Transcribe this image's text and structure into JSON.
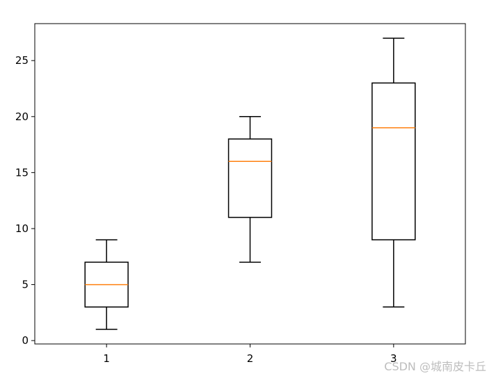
{
  "chart_data": {
    "type": "box",
    "title": "",
    "xlabel": "",
    "ylabel": "",
    "categories": [
      "1",
      "2",
      "3"
    ],
    "boxes": [
      {
        "label": "1",
        "whisker_low": 1,
        "q1": 3,
        "median": 5,
        "q3": 7,
        "whisker_high": 9
      },
      {
        "label": "2",
        "whisker_low": 7,
        "q1": 11,
        "median": 16,
        "q3": 18,
        "whisker_high": 20
      },
      {
        "label": "3",
        "whisker_low": 3,
        "q1": 9,
        "median": 19,
        "q3": 23,
        "whisker_high": 27
      }
    ],
    "ylim": [
      -0.3,
      28.3
    ],
    "yticks": [
      0,
      5,
      10,
      15,
      20,
      25
    ],
    "grid": false,
    "colors": {
      "box": "#000000",
      "median": "#ff7f0e"
    }
  },
  "watermark": "CSDN @城南皮卡丘"
}
